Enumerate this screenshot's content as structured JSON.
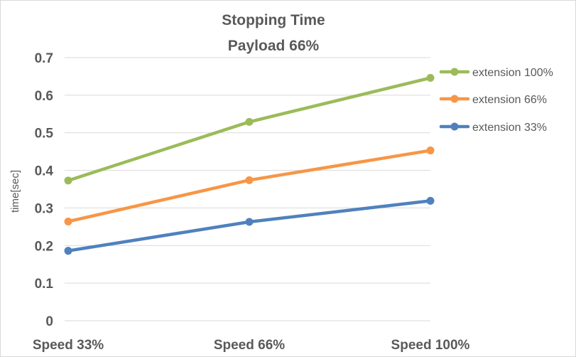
{
  "chart_data": {
    "type": "line",
    "title": "Stopping Time",
    "subtitle": "Payload 66%",
    "xlabel": "",
    "ylabel": "time[sec]",
    "categories": [
      "Speed 33%",
      "Speed 66%",
      "Speed 100%"
    ],
    "ylim": [
      0,
      0.7
    ],
    "yticks": [
      "0",
      "0.1",
      "0.2",
      "0.3",
      "0.4",
      "0.5",
      "0.6",
      "0.7"
    ],
    "grid": true,
    "legend_position": "right",
    "series": [
      {
        "name": "extension 100%",
        "color": "#9bbb59",
        "values": [
          0.373,
          0.529,
          0.646
        ]
      },
      {
        "name": "extension 66%",
        "color": "#f79646",
        "values": [
          0.264,
          0.374,
          0.453
        ]
      },
      {
        "name": "extension 33%",
        "color": "#4f81bd",
        "values": [
          0.186,
          0.263,
          0.319
        ]
      }
    ]
  }
}
